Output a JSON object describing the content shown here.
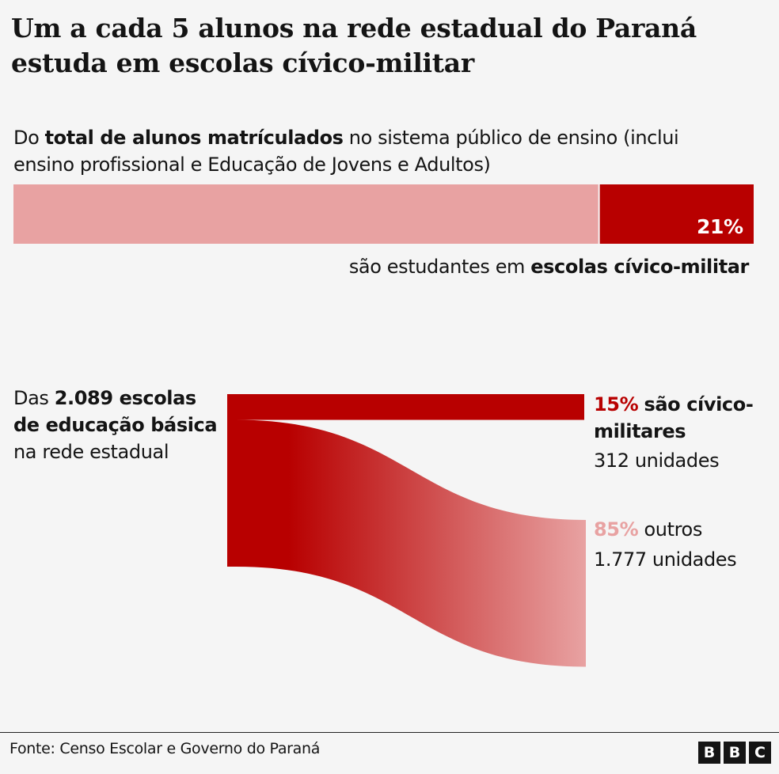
{
  "title": "Um a cada 5 alunos na rede estadual do Paraná estuda em escolas cívico-militar",
  "section1": {
    "intro_pre": "Do ",
    "intro_bold": "total de alunos matrículados",
    "intro_post": " no sistema público de ensino (inclui ensino profissional e Educação de Jovens e Adultos)",
    "value_label": "21%",
    "caption_pre": "são estudantes em ",
    "caption_bold": "escolas cívico-militar"
  },
  "section2": {
    "intro_pre": "Das ",
    "intro_bold1": "2.089 escolas de educação básica",
    "intro_post": " na rede estadual",
    "civic_pct": "15%",
    "civic_label": "são cívico-militares",
    "civic_units": "312 unidades",
    "other_pct": "85%",
    "other_label": "outros",
    "other_units": "1.777 unidades"
  },
  "footer": {
    "source": "Fonte: Censo Escolar e Governo do Paraná",
    "logo": [
      "B",
      "B",
      "C"
    ]
  },
  "colors": {
    "dark_red": "#b80000",
    "light_red": "#e8a2a2",
    "background": "#f5f5f5"
  },
  "chart_data": [
    {
      "type": "bar",
      "stacked": true,
      "categories": [
        "alunos matriculados"
      ],
      "series": [
        {
          "values": [
            79
          ]
        },
        {
          "name": "escolas cívico-militar",
          "values": [
            21
          ]
        }
      ],
      "unit": "%"
    },
    {
      "type": "sankey",
      "source": "2.089 escolas",
      "total": 2089,
      "flows": [
        {
          "target": "cívico-militares",
          "value": 312,
          "percent": 15
        },
        {
          "target": "outros",
          "value": 1777,
          "percent": 85
        }
      ]
    }
  ]
}
